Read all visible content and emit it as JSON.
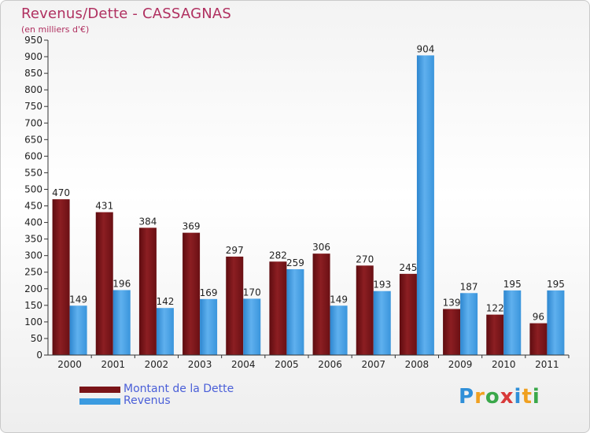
{
  "header": {
    "title": "Revenus/Dette - CASSAGNAS",
    "subtitle": "(en milliers d'€)"
  },
  "logo": {
    "text": "Proxiti",
    "colors": [
      "#2f8fd8",
      "#f0a020",
      "#3aa84a",
      "#d83a3a",
      "#2f8fd8",
      "#f0a020",
      "#3aa84a"
    ]
  },
  "colors": {
    "dette": "#7a1418",
    "revenus": "#3b9be0",
    "axis": "#333333",
    "grid": "#e6e6e6"
  },
  "chart_data": {
    "type": "bar",
    "title": "Revenus/Dette - CASSAGNAS",
    "subtitle": "(en milliers d'€)",
    "categories": [
      "2000",
      "2001",
      "2002",
      "2003",
      "2004",
      "2005",
      "2006",
      "2007",
      "2008",
      "2009",
      "2010",
      "2011"
    ],
    "series": [
      {
        "name": "Montant de la Dette",
        "values": [
          470,
          431,
          384,
          369,
          297,
          282,
          306,
          270,
          245,
          139,
          122,
          96
        ]
      },
      {
        "name": "Revenus",
        "values": [
          149,
          196,
          142,
          169,
          170,
          259,
          149,
          193,
          904,
          187,
          195,
          195
        ]
      }
    ],
    "ylim": [
      0,
      950
    ],
    "ytick_step": 50,
    "legend_position": "bottom-left",
    "data_labels": true
  }
}
